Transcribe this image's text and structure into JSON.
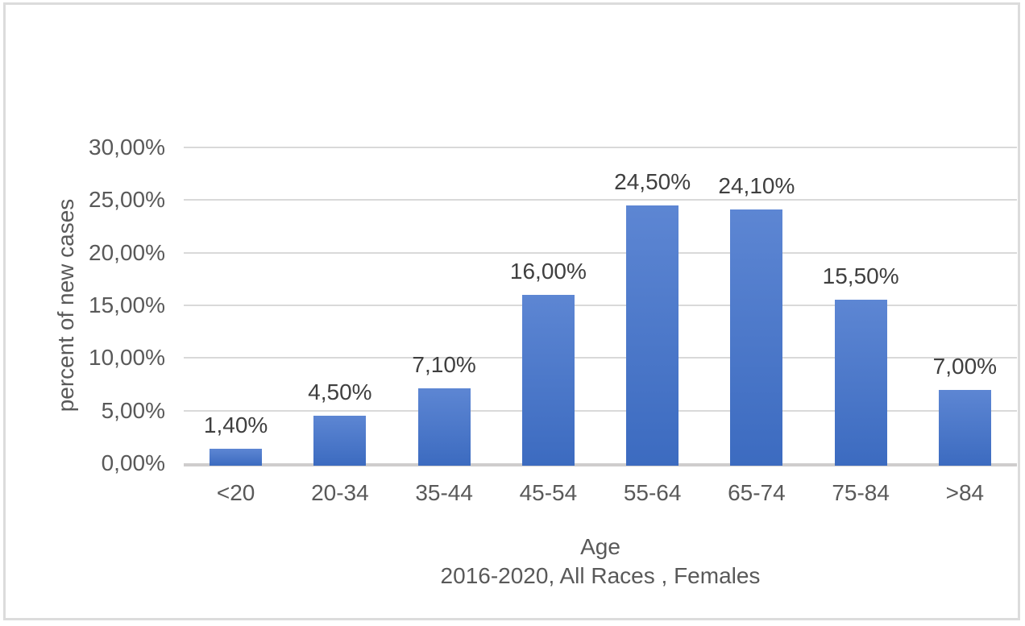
{
  "chart_data": {
    "type": "bar",
    "title": "",
    "xlabel": "Age",
    "xlabel_sub": "2016-2020, All Races , Females",
    "ylabel": "percent of new cases",
    "ylim": [
      0,
      30
    ],
    "grid": true,
    "legend": false,
    "categories": [
      "<20",
      "20-34",
      "35-44",
      "45-54",
      "55-64",
      "65-74",
      "75-84",
      ">84"
    ],
    "values": [
      1.4,
      4.5,
      7.1,
      16.0,
      24.5,
      24.1,
      15.5,
      7.0
    ],
    "value_labels": [
      "1,40%",
      "4,50%",
      "7,10%",
      "16,00%",
      "24,50%",
      "24,10%",
      "15,50%",
      "7,00%"
    ],
    "y_ticks": [
      {
        "value": 0,
        "label": "0,00%"
      },
      {
        "value": 5,
        "label": "5,00%"
      },
      {
        "value": 10,
        "label": "10,00%"
      },
      {
        "value": 15,
        "label": "15,00%"
      },
      {
        "value": 20,
        "label": "20,00%"
      },
      {
        "value": 25,
        "label": "25,00%"
      },
      {
        "value": 30,
        "label": "30,00%"
      }
    ],
    "colors": {
      "bar_top": "#5d86d3",
      "bar_bottom": "#3c6bc0",
      "gridline": "#d9d9d9",
      "axis_line": "#cfcdcd",
      "tick_text": "#595959",
      "data_label_text": "#3f3f3f",
      "frame_border": "#dcdcdc"
    }
  }
}
